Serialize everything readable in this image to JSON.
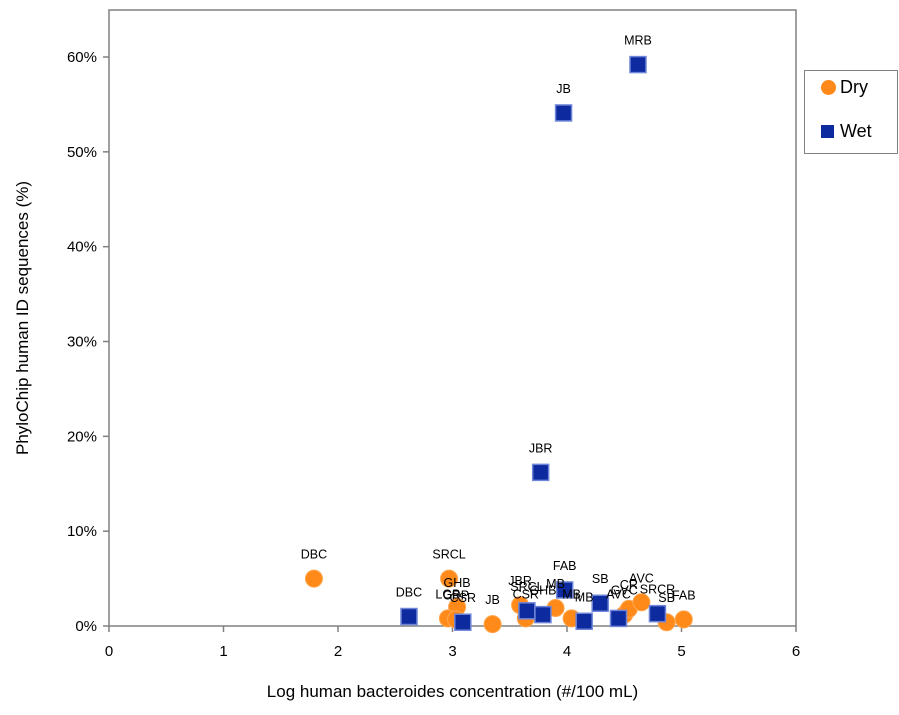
{
  "chart_data": {
    "type": "scatter",
    "xlabel": "Log human bacteroides concentration (#/100 mL)",
    "ylabel": "PhyloChip human ID sequences (%)",
    "xlim": [
      0,
      6
    ],
    "ylim": [
      0,
      0.65
    ],
    "x_ticks": [
      "0",
      "1",
      "2",
      "3",
      "4",
      "5",
      "6"
    ],
    "y_ticks": [
      {
        "value": 0.0,
        "label": "0%"
      },
      {
        "value": 0.1,
        "label": "10%"
      },
      {
        "value": 0.2,
        "label": "20%"
      },
      {
        "value": 0.3,
        "label": "30%"
      },
      {
        "value": 0.4,
        "label": "40%"
      },
      {
        "value": 0.5,
        "label": "50%"
      },
      {
        "value": 0.6,
        "label": "60%"
      }
    ],
    "grid": false,
    "legend_position": "right",
    "series": [
      {
        "name": "Dry",
        "color": "#ff8a1a",
        "marker": "circle",
        "points": [
          {
            "x": 1.79,
            "y": 0.05,
            "label": "DBC"
          },
          {
            "x": 2.97,
            "y": 0.05,
            "label": "SRCL"
          },
          {
            "x": 3.04,
            "y": 0.02,
            "label": "GHB"
          },
          {
            "x": 2.96,
            "y": 0.008,
            "label": "LGB"
          },
          {
            "x": 3.03,
            "y": 0.007,
            "label": "CRP"
          },
          {
            "x": 3.35,
            "y": 0.002,
            "label": "JB"
          },
          {
            "x": 3.59,
            "y": 0.022,
            "label": "JBR"
          },
          {
            "x": 3.64,
            "y": 0.008,
            "label": "CSR"
          },
          {
            "x": 3.9,
            "y": 0.019,
            "label": "MB"
          },
          {
            "x": 4.04,
            "y": 0.008,
            "label": "MB"
          },
          {
            "x": 4.5,
            "y": 0.012,
            "label": "GVC"
          },
          {
            "x": 4.54,
            "y": 0.018,
            "label": "CR"
          },
          {
            "x": 4.65,
            "y": 0.025,
            "label": "AVC"
          },
          {
            "x": 4.87,
            "y": 0.004,
            "label": "SB"
          },
          {
            "x": 5.02,
            "y": 0.007,
            "label": "FAB"
          }
        ]
      },
      {
        "name": "Wet",
        "color": "#0d2a9e",
        "marker": "square",
        "points": [
          {
            "x": 4.62,
            "y": 0.592,
            "label": "MRB"
          },
          {
            "x": 3.97,
            "y": 0.541,
            "label": "JB"
          },
          {
            "x": 3.77,
            "y": 0.162,
            "label": "JBR"
          },
          {
            "x": 3.98,
            "y": 0.038,
            "label": "FAB"
          },
          {
            "x": 2.62,
            "y": 0.01,
            "label": "DBC"
          },
          {
            "x": 3.09,
            "y": 0.004,
            "label": "CSR"
          },
          {
            "x": 3.65,
            "y": 0.016,
            "label": "SRCL"
          },
          {
            "x": 3.79,
            "y": 0.012,
            "label": "GHB"
          },
          {
            "x": 4.15,
            "y": 0.005,
            "label": "MB"
          },
          {
            "x": 4.29,
            "y": 0.024,
            "label": "SB"
          },
          {
            "x": 4.45,
            "y": 0.008,
            "label": "AVC"
          },
          {
            "x": 4.79,
            "y": 0.013,
            "label": "SRCR"
          }
        ]
      }
    ]
  }
}
